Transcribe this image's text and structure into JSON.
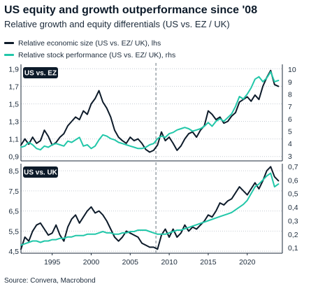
{
  "title": "US equity and growth outperformance since '08",
  "subtitle": "Relative growth and equity differentials (US vs. EZ / UK)",
  "legend": [
    {
      "label": "Relative economic size (US vs. EZ/ UK), lhs",
      "color": "#0d1b2a"
    },
    {
      "label": "Relative stock performance (US vs. EZ/ UK), rhs",
      "color": "#22c7a9"
    }
  ],
  "source": "Source: Convera, Macrobond",
  "x_ticks": [
    "1995",
    "2000",
    "2005",
    "2010",
    "2015",
    "2020"
  ],
  "chart_data": [
    {
      "type": "line",
      "panel_label": "US vs. EZ",
      "xlim": [
        1991,
        2024.5
      ],
      "ylim_left": [
        0.85,
        1.95
      ],
      "ylim_right": [
        2.6,
        10.4
      ],
      "left_ticks": [
        "0,9",
        "1,1",
        "1,3",
        "1,5",
        "1,7",
        "1,9"
      ],
      "left_tick_values": [
        0.9,
        1.1,
        1.3,
        1.5,
        1.7,
        1.9
      ],
      "right_ticks": [
        "3",
        "4",
        "5",
        "6",
        "7",
        "8",
        "9",
        "10"
      ],
      "right_tick_values": [
        3,
        4,
        5,
        6,
        7,
        8,
        9,
        10
      ],
      "vline_x": 2008.3,
      "series": [
        {
          "name": "Relative economic size (US vs. EZ/ UK), lhs",
          "axis": "left",
          "color": "#0d1b2a",
          "x": [
            1991,
            1991.5,
            1992,
            1992.5,
            1993,
            1993.5,
            1994,
            1994.5,
            1995,
            1995.5,
            1996,
            1996.5,
            1997,
            1997.5,
            1998,
            1998.5,
            1999,
            1999.5,
            2000,
            2000.5,
            2001,
            2001.5,
            2002,
            2002.5,
            2003,
            2003.5,
            2004,
            2004.5,
            2005,
            2005.5,
            2006,
            2006.5,
            2007,
            2007.5,
            2008,
            2008.5,
            2009,
            2009.5,
            2010,
            2010.5,
            2011,
            2011.5,
            2012,
            2012.5,
            2013,
            2013.5,
            2014,
            2014.5,
            2015,
            2015.5,
            2016,
            2016.5,
            2017,
            2017.5,
            2018,
            2018.5,
            2019,
            2019.5,
            2020,
            2020.5,
            2021,
            2021.5,
            2022,
            2022.5,
            2023,
            2023.5,
            2024
          ],
          "values": [
            1.03,
            1.1,
            1.04,
            1.12,
            1.05,
            1.08,
            1.2,
            1.13,
            1.03,
            1.06,
            1.12,
            1.16,
            1.25,
            1.3,
            1.35,
            1.32,
            1.42,
            1.38,
            1.5,
            1.56,
            1.65,
            1.52,
            1.45,
            1.35,
            1.2,
            1.12,
            1.08,
            1.05,
            1.12,
            1.08,
            1.1,
            1.05,
            0.98,
            0.95,
            0.97,
            1.03,
            1.18,
            1.08,
            1.12,
            1.05,
            0.97,
            1.02,
            1.1,
            1.16,
            1.18,
            1.12,
            1.2,
            1.25,
            1.42,
            1.38,
            1.32,
            1.35,
            1.28,
            1.3,
            1.36,
            1.4,
            1.52,
            1.55,
            1.58,
            1.53,
            1.6,
            1.55,
            1.7,
            1.8,
            1.88,
            1.72,
            1.7
          ]
        },
        {
          "name": "Relative stock performance (US vs. EZ/ UK), rhs",
          "axis": "right",
          "color": "#22c7a9",
          "x": [
            1991,
            1991.5,
            1992,
            1992.5,
            1993,
            1993.5,
            1994,
            1994.5,
            1995,
            1995.5,
            1996,
            1996.5,
            1997,
            1997.5,
            1998,
            1998.5,
            1999,
            1999.5,
            2000,
            2000.5,
            2001,
            2001.5,
            2002,
            2002.5,
            2003,
            2003.5,
            2004,
            2004.5,
            2005,
            2005.5,
            2006,
            2006.5,
            2007,
            2007.5,
            2008,
            2008.5,
            2009,
            2009.5,
            2010,
            2010.5,
            2011,
            2011.5,
            2012,
            2012.5,
            2013,
            2013.5,
            2014,
            2014.5,
            2015,
            2015.5,
            2016,
            2016.5,
            2017,
            2017.5,
            2018,
            2018.5,
            2019,
            2019.5,
            2020,
            2020.5,
            2021,
            2021.5,
            2022,
            2022.5,
            2023,
            2023.5,
            2024
          ],
          "values": [
            3.7,
            3.8,
            4.1,
            3.9,
            3.6,
            3.5,
            3.8,
            3.7,
            3.9,
            4.0,
            3.9,
            3.8,
            4.2,
            4.1,
            4.3,
            4.5,
            3.8,
            3.9,
            3.6,
            3.8,
            4.3,
            4.7,
            4.6,
            4.4,
            4.3,
            4.1,
            4.0,
            3.9,
            3.8,
            3.7,
            3.6,
            3.6,
            3.7,
            3.9,
            4.0,
            4.4,
            4.6,
            4.5,
            4.8,
            4.9,
            5.1,
            5.2,
            5.3,
            5.2,
            5.0,
            5.1,
            5.2,
            5.4,
            5.7,
            5.4,
            5.8,
            6.0,
            5.8,
            6.1,
            6.4,
            7.0,
            7.8,
            7.6,
            8.0,
            8.5,
            9.2,
            9.4,
            9.0,
            9.3,
            9.8,
            9.0,
            9.1
          ]
        }
      ]
    },
    {
      "type": "line",
      "panel_label": "US vs. UK",
      "xlim": [
        1991,
        2024.5
      ],
      "ylim_left": [
        4.4,
        8.85
      ],
      "ylim_right": [
        0.06,
        0.72
      ],
      "left_ticks": [
        "4,5",
        "5,5",
        "6,5",
        "7,5",
        "8,5"
      ],
      "left_tick_values": [
        4.5,
        5.5,
        6.5,
        7.5,
        8.5
      ],
      "right_ticks": [
        "0,1",
        "0,2",
        "0,3",
        "0,4",
        "0,5",
        "0,6",
        "0,7"
      ],
      "right_tick_values": [
        0.1,
        0.2,
        0.3,
        0.4,
        0.5,
        0.6,
        0.7
      ],
      "vline_x": 2008.3,
      "series": [
        {
          "name": "Relative economic size (US vs. EZ/ UK), lhs",
          "axis": "left",
          "color": "#0d1b2a",
          "x": [
            1991,
            1991.5,
            1992,
            1992.5,
            1993,
            1993.5,
            1994,
            1994.5,
            1995,
            1995.5,
            1996,
            1996.5,
            1997,
            1997.5,
            1998,
            1998.5,
            1999,
            1999.5,
            2000,
            2000.5,
            2001,
            2001.5,
            2002,
            2002.5,
            2003,
            2003.5,
            2004,
            2004.5,
            2005,
            2005.5,
            2006,
            2006.5,
            2007,
            2007.5,
            2008,
            2008.5,
            2009,
            2009.5,
            2010,
            2010.5,
            2011,
            2011.5,
            2012,
            2012.5,
            2013,
            2013.5,
            2014,
            2014.5,
            2015,
            2015.5,
            2016,
            2016.5,
            2017,
            2017.5,
            2018,
            2018.5,
            2019,
            2019.5,
            2020,
            2020.5,
            2021,
            2021.5,
            2022,
            2022.5,
            2023,
            2023.5,
            2024
          ],
          "values": [
            4.6,
            5.2,
            5.0,
            5.5,
            5.8,
            5.9,
            5.6,
            5.3,
            5.4,
            5.8,
            5.3,
            5.0,
            5.7,
            6.1,
            6.3,
            5.9,
            6.2,
            6.5,
            6.7,
            6.4,
            6.5,
            6.3,
            6.0,
            5.6,
            5.2,
            5.0,
            5.2,
            5.5,
            5.4,
            5.3,
            5.2,
            4.9,
            4.8,
            4.7,
            4.7,
            4.6,
            5.3,
            5.6,
            5.2,
            5.6,
            5.2,
            5.4,
            5.8,
            5.5,
            5.7,
            5.6,
            5.8,
            6.0,
            6.3,
            6.2,
            6.5,
            6.9,
            6.8,
            7.0,
            7.1,
            7.4,
            7.7,
            7.5,
            7.3,
            7.6,
            7.9,
            7.6,
            8.0,
            8.5,
            8.7,
            8.2,
            8.0
          ]
        },
        {
          "name": "Relative stock performance (US vs. EZ/ UK), rhs",
          "axis": "right",
          "color": "#22c7a9",
          "x": [
            1991,
            1991.5,
            1992,
            1992.5,
            1993,
            1993.5,
            1994,
            1994.5,
            1995,
            1995.5,
            1996,
            1996.5,
            1997,
            1997.5,
            1998,
            1998.5,
            1999,
            1999.5,
            2000,
            2000.5,
            2001,
            2001.5,
            2002,
            2002.5,
            2003,
            2003.5,
            2004,
            2004.5,
            2005,
            2005.5,
            2006,
            2006.5,
            2007,
            2007.5,
            2008,
            2008.5,
            2009,
            2009.5,
            2010,
            2010.5,
            2011,
            2011.5,
            2012,
            2012.5,
            2013,
            2013.5,
            2014,
            2014.5,
            2015,
            2015.5,
            2016,
            2016.5,
            2017,
            2017.5,
            2018,
            2018.5,
            2019,
            2019.5,
            2020,
            2020.5,
            2021,
            2021.5,
            2022,
            2022.5,
            2023,
            2023.5,
            2024
          ],
          "values": [
            0.12,
            0.13,
            0.14,
            0.15,
            0.15,
            0.14,
            0.15,
            0.15,
            0.16,
            0.16,
            0.17,
            0.17,
            0.18,
            0.18,
            0.19,
            0.19,
            0.19,
            0.2,
            0.2,
            0.2,
            0.21,
            0.22,
            0.21,
            0.21,
            0.2,
            0.2,
            0.21,
            0.21,
            0.22,
            0.22,
            0.23,
            0.23,
            0.23,
            0.22,
            0.21,
            0.2,
            0.2,
            0.2,
            0.21,
            0.22,
            0.23,
            0.23,
            0.24,
            0.25,
            0.26,
            0.27,
            0.28,
            0.29,
            0.3,
            0.31,
            0.32,
            0.33,
            0.34,
            0.35,
            0.36,
            0.38,
            0.4,
            0.42,
            0.45,
            0.5,
            0.55,
            0.57,
            0.6,
            0.63,
            0.65,
            0.55,
            0.57
          ]
        }
      ]
    }
  ]
}
